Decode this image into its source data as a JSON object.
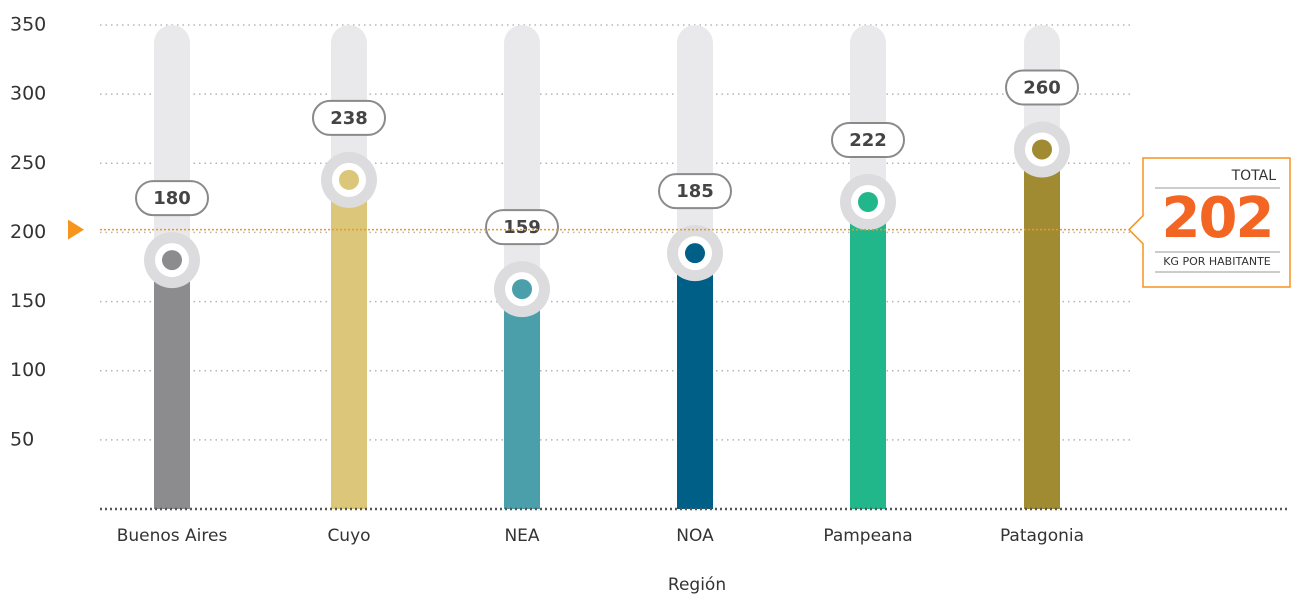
{
  "chart_data": {
    "type": "bar",
    "categories": [
      "Buenos Aires",
      "Cuyo",
      "NEA",
      "NOA",
      "Pampeana",
      "Patagonia"
    ],
    "values": [
      180,
      238,
      159,
      185,
      222,
      260
    ],
    "colors": [
      "#8c8c8e",
      "#dcc67a",
      "#4a9fab",
      "#005f87",
      "#22b78a",
      "#a08a32"
    ],
    "x_label": "Región",
    "ylim": [
      0,
      350
    ],
    "yticks": [
      50,
      100,
      150,
      200,
      250,
      300,
      350
    ],
    "grid": true,
    "total": {
      "label": "TOTAL",
      "value": 202,
      "unit": "KG POR HABITANTE"
    }
  }
}
